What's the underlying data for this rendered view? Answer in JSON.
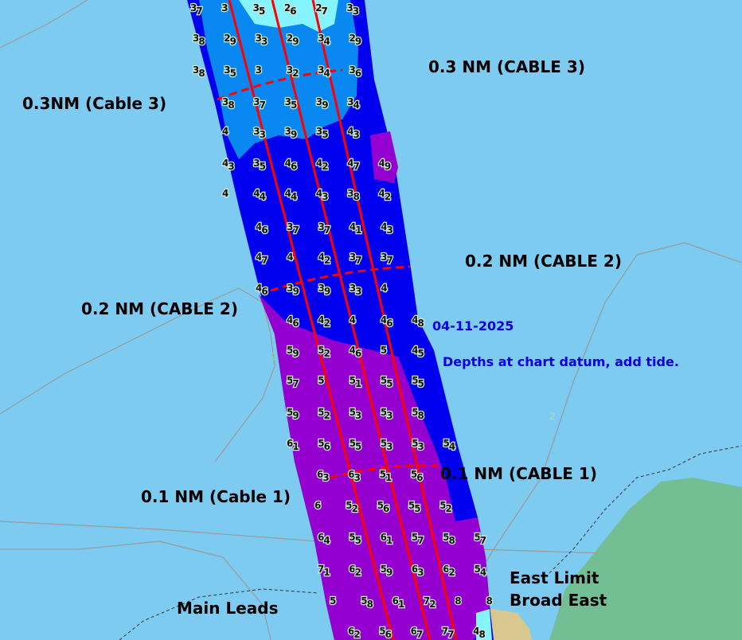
{
  "map": {
    "colors": {
      "sea": "#7ecbf2",
      "deep_blue": "#0000ee",
      "mid_blue": "#0a88f2",
      "cyan": "#86f4ff",
      "purple": "#9400d0",
      "line_red": "#ff0000",
      "land_green": "#74be94",
      "land_tan": "#d8c890",
      "note_blue": "#0000e0"
    },
    "labels": {
      "cable3_right": "0.3 NM (CABLE 3)",
      "cable3_left": "0.3NM (Cable 3)",
      "cable2_right": "0.2 NM (CABLE 2)",
      "cable2_left": "0.2 NM (CABLE 2)",
      "cable1_right": "0.1 NM (CABLE 1)",
      "cable1_left": "0.1 NM (Cable 1)",
      "east_limit": "East Limit",
      "broad_east": "Broad East",
      "main_leads": "Main Leads",
      "contour_2a": "2",
      "contour_2b": "2"
    },
    "notes": {
      "date": "04-11-2025",
      "datum": "Depths at chart datum, add tide."
    },
    "soundings": [
      [
        "37",
        "3",
        "35",
        "26",
        "27",
        "33"
      ],
      [
        "38",
        "29",
        "33",
        "29",
        "34",
        "29"
      ],
      [
        "38",
        "35",
        "3",
        "32",
        "34",
        "36"
      ],
      [
        "38",
        "37",
        "35",
        "39",
        "34"
      ],
      [
        "4",
        "33",
        "39",
        "35",
        "43"
      ],
      [
        "43",
        "35",
        "46",
        "42",
        "47",
        "49"
      ],
      [
        "4",
        "44",
        "44",
        "43",
        "38",
        "42"
      ],
      [
        "46",
        "37",
        "37",
        "41",
        "43"
      ],
      [
        "47",
        "4",
        "42",
        "37",
        "37"
      ],
      [
        "46",
        "39",
        "39",
        "33",
        "4"
      ],
      [
        "46",
        "42",
        "4",
        "46",
        "48"
      ],
      [
        "59",
        "52",
        "46",
        "5",
        "45"
      ],
      [
        "57",
        "5",
        "51",
        "55",
        "55"
      ],
      [
        "59",
        "52",
        "53",
        "53",
        "58"
      ],
      [
        "61",
        "56",
        "55",
        "53",
        "53",
        "54"
      ],
      [
        "63",
        "63",
        "51",
        "56"
      ],
      [
        "6",
        "52",
        "56",
        "55",
        "52"
      ],
      [
        "64",
        "55",
        "61",
        "57",
        "58",
        "57"
      ],
      [
        "71",
        "62",
        "59",
        "63",
        "62",
        "54"
      ],
      [
        "5",
        "58",
        "61",
        "72",
        "8",
        "8"
      ],
      [
        "62",
        "56",
        "67",
        "77",
        "48"
      ]
    ]
  }
}
